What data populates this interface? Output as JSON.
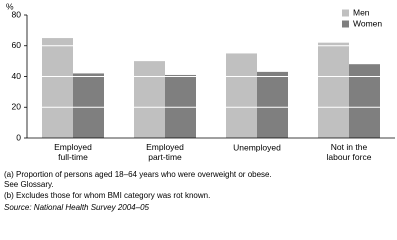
{
  "chart_data": {
    "type": "bar",
    "unit_label": "%",
    "categories": [
      "Employed\nfull-time",
      "Employed\npart-time",
      "Unemployed",
      "Not in the\nlabour force"
    ],
    "series": [
      {
        "name": "Men",
        "color": "#c0c0c0",
        "values": [
          65,
          50,
          55,
          62
        ]
      },
      {
        "name": "Women",
        "color": "#7f7f7f",
        "values": [
          42,
          41,
          43,
          48
        ]
      }
    ],
    "ylim": [
      0,
      80
    ],
    "yticks": [
      0,
      20,
      40,
      60,
      80
    ],
    "grid": true,
    "legend": "top-right",
    "footnotes": [
      "(a) Proportion of persons aged 18–64 years who were overweight or obese.",
      "See Glossary.",
      "(b) Excludes those for whom BMI category was rot known."
    ],
    "source": "Source: National Health Survey 2004–05"
  }
}
